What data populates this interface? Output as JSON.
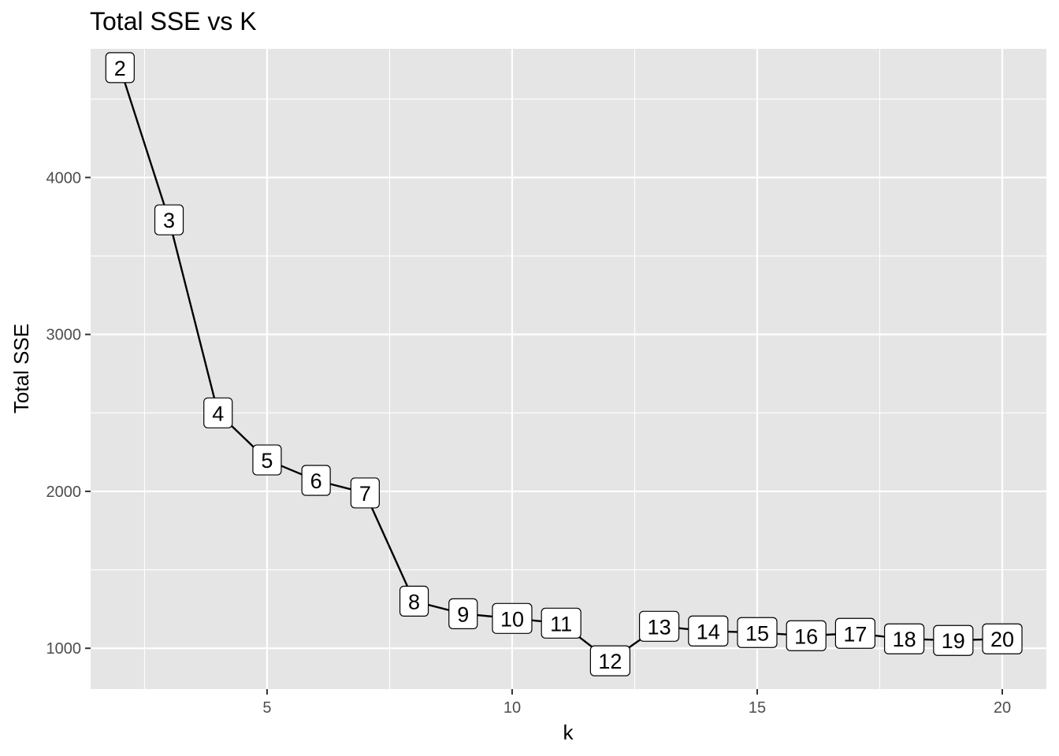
{
  "chart_data": {
    "type": "line",
    "title": "Total SSE vs K",
    "xlabel": "k",
    "ylabel": "Total SSE",
    "xlim": [
      1.4,
      20.9
    ],
    "ylim": [
      740,
      4820
    ],
    "x_ticks": [
      5,
      10,
      15,
      20
    ],
    "x_tick_labels": [
      "5",
      "10",
      "15",
      "20"
    ],
    "x_minor_ticks": [
      2.5,
      7.5,
      12.5,
      17.5
    ],
    "y_ticks": [
      1000,
      2000,
      3000,
      4000
    ],
    "y_tick_labels": [
      "1000",
      "2000",
      "3000",
      "4000"
    ],
    "y_minor_ticks": [
      1500,
      2500,
      3500,
      4500
    ],
    "grid": true,
    "series": [
      {
        "name": "Total SSE",
        "x": [
          2,
          3,
          4,
          5,
          6,
          7,
          8,
          9,
          10,
          11,
          12,
          13,
          14,
          15,
          16,
          17,
          18,
          19,
          20
        ],
        "values": [
          4700,
          3730,
          2500,
          2200,
          2070,
          1990,
          1300,
          1220,
          1190,
          1160,
          920,
          1140,
          1110,
          1100,
          1080,
          1095,
          1060,
          1050,
          1060
        ],
        "labels": [
          "2",
          "3",
          "4",
          "5",
          "6",
          "7",
          "8",
          "9",
          "10",
          "11",
          "12",
          "13",
          "14",
          "15",
          "16",
          "17",
          "18",
          "19",
          "20"
        ]
      }
    ],
    "colors": {
      "panel_background": "#e5e5e5",
      "grid_major": "#ffffff",
      "line": "#000000",
      "label_fill": "#ffffff",
      "label_border": "#000000",
      "tick_text": "#4d4d4d"
    }
  }
}
